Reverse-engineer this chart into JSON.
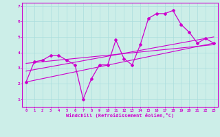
{
  "xlabel": "Windchill (Refroidissement éolien,°C)",
  "bg_color": "#cceee8",
  "line_color": "#cc00cc",
  "grid_color": "#aadddd",
  "x_min": -0.5,
  "x_max": 23.5,
  "y_min": 0.5,
  "y_max": 7.2,
  "yticks": [
    1,
    2,
    3,
    4,
    5,
    6,
    7
  ],
  "xticks": [
    0,
    1,
    2,
    3,
    4,
    5,
    6,
    7,
    8,
    9,
    10,
    11,
    12,
    13,
    14,
    15,
    16,
    17,
    18,
    19,
    20,
    21,
    22,
    23
  ],
  "line1_x": [
    0,
    1,
    2,
    3,
    4,
    5,
    6,
    7,
    8,
    9,
    10,
    11,
    12,
    13,
    14,
    15,
    16,
    17,
    18,
    19,
    20,
    21,
    22,
    23
  ],
  "line1_y": [
    2.1,
    3.4,
    3.5,
    3.8,
    3.8,
    3.5,
    3.2,
    1.0,
    2.3,
    3.2,
    3.2,
    4.8,
    3.6,
    3.2,
    4.5,
    6.2,
    6.5,
    6.5,
    6.7,
    5.8,
    5.3,
    4.6,
    4.9,
    4.6
  ],
  "line2_x": [
    0,
    23
  ],
  "line2_y": [
    2.1,
    4.6
  ],
  "line3_x": [
    0,
    23
  ],
  "line3_y": [
    3.3,
    4.5
  ],
  "line4_x": [
    0,
    23
  ],
  "line4_y": [
    2.8,
    5.0
  ]
}
